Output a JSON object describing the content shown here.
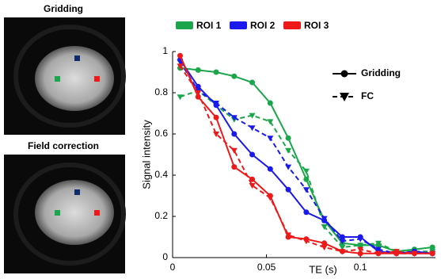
{
  "images": [
    {
      "title": "Gridding"
    },
    {
      "title": "Field correction"
    }
  ],
  "chart_data": {
    "type": "line",
    "x_label": "TE (s)",
    "y_label": "Signal intensity",
    "x": [
      0.004,
      0.0136,
      0.0232,
      0.0328,
      0.0424,
      0.052,
      0.0616,
      0.0712,
      0.0808,
      0.0904,
      0.1,
      0.1096,
      0.1192,
      0.1288,
      0.1384
    ],
    "xlim": [
      0,
      0.14
    ],
    "xticks": [
      0,
      0.05,
      0.1
    ],
    "ylim": [
      0,
      1
    ],
    "yticks": [
      0,
      0.2,
      0.4,
      0.6,
      0.8,
      1
    ],
    "methods": [
      {
        "name": "Gridding",
        "marker": "circle",
        "dash": "none"
      },
      {
        "name": "FC",
        "marker": "triangle-down",
        "dash": "6,4"
      }
    ],
    "series": [
      {
        "name": "ROI 1",
        "color": "#1aa64a",
        "lines": [
          {
            "values": [
              0.92,
              0.91,
              0.9,
              0.88,
              0.85,
              0.75,
              0.58,
              0.38,
              0.18,
              0.07,
              0.06,
              0.06,
              0.03,
              0.04,
              0.05
            ]
          },
          {
            "values": [
              0.78,
              0.81,
              0.74,
              0.67,
              0.69,
              0.66,
              0.52,
              0.42,
              0.15,
              0.05,
              0.06,
              0.07,
              0.03,
              0.03,
              0.03
            ]
          }
        ]
      },
      {
        "name": "ROI 2",
        "color": "#1a1aee",
        "lines": [
          {
            "values": [
              0.96,
              0.83,
              0.74,
              0.6,
              0.5,
              0.43,
              0.33,
              0.22,
              0.18,
              0.1,
              0.1,
              0.03,
              0.02,
              0.03,
              0.02
            ]
          },
          {
            "values": [
              0.95,
              0.81,
              0.75,
              0.68,
              0.63,
              0.58,
              0.44,
              0.33,
              0.19,
              0.08,
              0.09,
              0.04,
              0.02,
              0.02,
              0.02
            ]
          }
        ]
      },
      {
        "name": "ROI 3",
        "color": "#ee1a1a",
        "lines": [
          {
            "values": [
              0.98,
              0.78,
              0.68,
              0.44,
              0.38,
              0.3,
              0.1,
              0.09,
              0.07,
              0.03,
              0.02,
              0.02,
              0.02,
              0.02,
              0.02
            ]
          },
          {
            "values": [
              0.93,
              0.8,
              0.6,
              0.52,
              0.35,
              0.29,
              0.11,
              0.08,
              0.05,
              0.03,
              0.04,
              0.02,
              0.03,
              0.02,
              0.02
            ]
          }
        ]
      }
    ]
  }
}
